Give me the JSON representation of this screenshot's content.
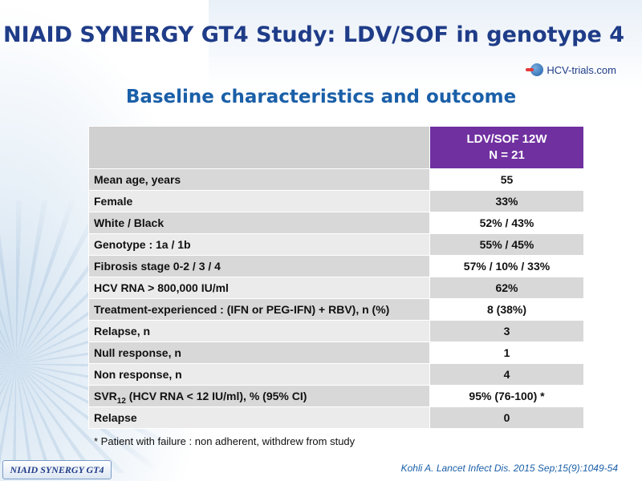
{
  "slide": {
    "title": "NIAID SYNERGY GT4 Study: LDV/SOF in genotype 4",
    "subtitle": "Baseline characteristics and outcome",
    "logo_text": "HCV-trials.com",
    "badge": "NIAID SYNERGY GT4",
    "citation": "Kohli A. Lancet Infect Dis. 2015 Sep;15(9):1049-54",
    "footnote": "* Patient with failure : non adherent, withdrew from study"
  },
  "table": {
    "header_line1": "LDV/SOF 12W",
    "header_line2": "N = 21",
    "rows": [
      {
        "label": "Mean age, years",
        "value": "55"
      },
      {
        "label": "Female",
        "value": "33%"
      },
      {
        "label": "White / Black",
        "value": "52% / 43%"
      },
      {
        "label": "Genotype : 1a / 1b",
        "value": "55% / 45%"
      },
      {
        "label": "Fibrosis stage 0-2 / 3 / 4",
        "value": "57% / 10% / 33%"
      },
      {
        "label": "HCV RNA > 800,000 IU/ml",
        "value": "62%"
      },
      {
        "label": "Treatment-experienced : (IFN or PEG-IFN) + RBV), n (%)",
        "value": "8 (38%)"
      },
      {
        "label": "Relapse, n",
        "value": "3"
      },
      {
        "label": "Null response, n",
        "value": "1"
      },
      {
        "label": "Non response, n",
        "value": "4"
      },
      {
        "label_prefix": "SVR",
        "label_sub": "12",
        "label_suffix": " (HCV RNA < 12 IU/ml), % (95% CI)",
        "value": "95% (76-100) *"
      },
      {
        "label": "Relapse",
        "value": "0"
      }
    ]
  },
  "colors": {
    "title": "#1f3c88",
    "subtitle": "#1a5fa8",
    "header_purple": "#7030a0"
  }
}
